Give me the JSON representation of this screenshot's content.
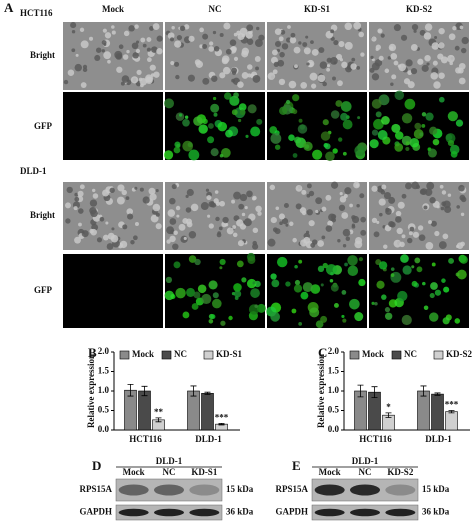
{
  "figure": {
    "panel_labels": [
      "A",
      "B",
      "C",
      "D",
      "E"
    ],
    "columns": [
      "Mock",
      "NC",
      "KD-S1",
      "KD-S2"
    ],
    "cell_lines": [
      "HCT116",
      "DLD-1"
    ],
    "rows": [
      "Bright",
      "GFP"
    ]
  },
  "blots": [
    {
      "cell_line": "DLD-1",
      "lanes": [
        "Mock",
        "NC",
        "KD-S1"
      ],
      "proteins": [
        "RPS15A",
        "GAPDH"
      ],
      "sizes": [
        "15 kDa",
        "36 kDa"
      ]
    },
    {
      "cell_line": "DLD-1",
      "lanes": [
        "Mock",
        "NC",
        "KD-S2"
      ],
      "proteins": [
        "RPS15A",
        "GAPDH"
      ],
      "sizes": [
        "15 kDa",
        "36 kDa"
      ]
    }
  ],
  "chart_data": [
    {
      "type": "bar",
      "y_label": "Relative expression",
      "categories": [
        "HCT116",
        "DLD-1"
      ],
      "series": [
        {
          "name": "Mock",
          "color": "#8a8a8a",
          "values": [
            1.02,
            1.0
          ],
          "errors": [
            0.15,
            0.13
          ]
        },
        {
          "name": "NC",
          "color": "#4a4a4a",
          "values": [
            1.0,
            0.94
          ],
          "errors": [
            0.12,
            0.03
          ]
        },
        {
          "name": "KD-S1",
          "color": "#d0d0d0",
          "values": [
            0.26,
            0.15
          ],
          "errors": [
            0.05,
            0.02
          ]
        }
      ],
      "annotations": [
        "**",
        "***"
      ],
      "ylim": [
        0,
        2
      ],
      "yticks": [
        {
          "value": 0,
          "label": "0.0"
        },
        {
          "value": 0.5,
          "label": "0.5"
        },
        {
          "value": 1,
          "label": "1.0"
        },
        {
          "value": 1.5,
          "label": "1.5"
        },
        {
          "value": 2,
          "label": "2.0"
        }
      ]
    },
    {
      "type": "bar",
      "y_label": "Relative expression",
      "categories": [
        "HCT116",
        "DLD-1"
      ],
      "series": [
        {
          "name": "Mock",
          "color": "#8a8a8a",
          "values": [
            1.0,
            1.0
          ],
          "errors": [
            0.15,
            0.13
          ]
        },
        {
          "name": "NC",
          "color": "#4a4a4a",
          "values": [
            0.97,
            0.92
          ],
          "errors": [
            0.14,
            0.03
          ]
        },
        {
          "name": "KD-S2",
          "color": "#d0d0d0",
          "values": [
            0.38,
            0.47
          ],
          "errors": [
            0.06,
            0.03
          ]
        }
      ],
      "annotations": [
        "*",
        "***"
      ],
      "ylim": [
        0,
        2
      ],
      "yticks": [
        {
          "value": 0,
          "label": "0.0"
        },
        {
          "value": 0.5,
          "label": "0.5"
        },
        {
          "value": 1,
          "label": "1.0"
        },
        {
          "value": 1.5,
          "label": "1.5"
        },
        {
          "value": 2,
          "label": "2.0"
        }
      ]
    }
  ]
}
